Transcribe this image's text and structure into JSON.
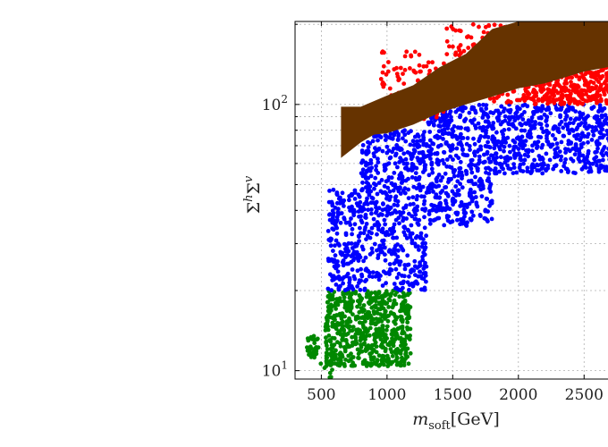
{
  "chart_data": {
    "type": "scatter",
    "title": "",
    "xlabel": {
      "main": "m",
      "subscript": "soft",
      "unit": "[GeV]"
    },
    "ylabel": {
      "base": "Σ",
      "sup1": "h",
      "mid": "Σ",
      "sup2": "v"
    },
    "xlim": [
      300,
      2750
    ],
    "ylim": [
      9.3,
      205
    ],
    "yscale": "log",
    "grid": true,
    "x_ticks": [
      500,
      1000,
      1500,
      2000,
      2500
    ],
    "x_tick_labels": [
      "500",
      "1000",
      "1500",
      "2000",
      "2500"
    ],
    "y_ticks": [
      10,
      100
    ],
    "y_tick_labels": [
      {
        "base": "10",
        "exp": "1"
      },
      {
        "base": "10",
        "exp": "2"
      }
    ],
    "y_minor_ticks": [
      20,
      30,
      40,
      50,
      60,
      70,
      80,
      90,
      200
    ],
    "series": [
      {
        "color": "#008800",
        "clusters": [
          {
            "xmin": 380,
            "xmax": 480,
            "ymin": 11.2,
            "ymax": 13.5,
            "n": 35
          },
          {
            "xmin": 530,
            "xmax": 1180,
            "ymin": 10.4,
            "ymax": 20,
            "n": 650
          },
          {
            "xmin": 480,
            "xmax": 600,
            "ymin": 9.4,
            "ymax": 11.2,
            "n": 12
          }
        ]
      },
      {
        "color": "#0000ff",
        "clusters": [
          {
            "xmin": 550,
            "xmax": 800,
            "ymin": 20,
            "ymax": 48,
            "n": 200
          },
          {
            "xmin": 800,
            "xmax": 1300,
            "ymin": 20,
            "ymax": 80,
            "n": 550
          },
          {
            "xmin": 1300,
            "xmax": 1800,
            "ymin": 35,
            "ymax": 100,
            "n": 450
          },
          {
            "xmin": 1800,
            "xmax": 2750,
            "ymin": 55,
            "ymax": 100,
            "n": 550
          }
        ]
      },
      {
        "color": "#ff0000",
        "clusters": [
          {
            "xmin": 950,
            "xmax": 1450,
            "ymin": 88,
            "ymax": 158,
            "n": 110
          },
          {
            "xmin": 1450,
            "xmax": 2050,
            "ymin": 100,
            "ymax": 200,
            "n": 170
          },
          {
            "xmin": 2050,
            "xmax": 2750,
            "ymin": 100,
            "ymax": 165,
            "n": 600
          }
        ]
      }
    ],
    "band": {
      "color": "#663300",
      "upper": [
        [
          650,
          98
        ],
        [
          800,
          98
        ],
        [
          1000,
          108
        ],
        [
          1200,
          118
        ],
        [
          1400,
          138
        ],
        [
          1600,
          155
        ],
        [
          1800,
          192
        ],
        [
          2000,
          205
        ],
        [
          2750,
          205
        ]
      ],
      "lower": [
        [
          650,
          63
        ],
        [
          800,
          72
        ],
        [
          900,
          77
        ],
        [
          1000,
          78
        ],
        [
          1200,
          84
        ],
        [
          1400,
          93
        ],
        [
          1600,
          100
        ],
        [
          1800,
          107
        ],
        [
          2000,
          115
        ],
        [
          2200,
          120
        ],
        [
          2500,
          133
        ],
        [
          2750,
          140
        ]
      ]
    }
  }
}
